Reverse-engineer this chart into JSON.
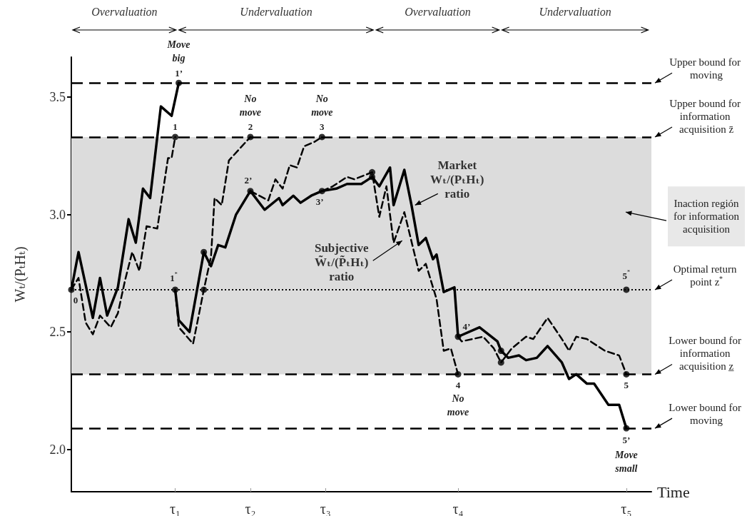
{
  "chart_data": {
    "type": "line",
    "xlabel": "Time",
    "ylabel": "Wₜ/(PₜHₜ)",
    "categories": [
      null,
      null,
      null,
      null,
      null,
      null,
      null,
      null,
      null,
      null,
      null,
      null,
      null,
      null,
      null,
      null,
      null,
      null,
      null,
      null,
      null,
      null,
      null,
      null,
      null,
      null,
      null,
      null,
      null,
      "τ₁",
      null,
      null,
      null,
      null,
      null,
      null,
      null,
      null,
      null,
      null,
      null,
      null,
      null,
      null,
      null,
      null,
      null,
      null,
      null,
      null,
      "τ₂",
      null,
      null,
      null,
      null,
      null,
      null,
      null,
      null,
      null,
      null,
      null,
      null,
      null,
      null,
      null,
      null,
      null,
      null,
      null,
      null,
      "τ₃",
      null,
      null,
      null,
      null,
      null,
      null,
      null,
      null,
      null,
      null,
      null,
      null,
      null,
      null,
      null,
      null,
      null,
      null,
      null,
      null,
      null,
      null,
      null,
      null,
      null,
      null,
      null,
      null,
      null,
      null,
      null,
      null,
      null,
      null,
      null,
      null,
      "τ₄",
      null,
      null,
      null,
      null,
      null,
      null,
      null,
      null,
      null,
      null,
      null,
      null,
      null,
      null,
      null,
      null,
      null,
      null,
      null,
      null,
      null,
      null,
      null,
      null,
      null,
      null,
      null,
      null,
      null,
      null,
      null,
      null,
      null,
      null,
      null,
      null,
      null,
      null,
      null,
      null,
      null,
      null,
      null,
      null,
      null,
      null,
      "τ₅",
      null,
      null,
      null,
      null,
      null,
      null,
      null
    ],
    "ylim": [
      1.82,
      3.67
    ],
    "yticks": [
      {
        "value": 2,
        "label": "2.0"
      },
      {
        "value": 2.5,
        "label": "2.5"
      },
      {
        "value": 3,
        "label": "3.0"
      },
      {
        "value": 3.5,
        "label": "3.5"
      }
    ],
    "series": [
      {
        "type": "line",
        "color": "#000000",
        "line_style": "solid",
        "values": [
          2.68,
          null,
          2.84,
          null,
          null,
          null,
          2.56,
          null,
          2.73,
          null,
          2.57,
          null,
          null,
          2.69,
          null,
          null,
          2.98,
          null,
          2.88,
          null,
          3.11,
          null,
          3.07,
          null,
          null,
          3.46,
          null,
          null,
          3.42,
          null,
          3.56,
          null,
          null,
          null,
          null,
          null,
          null,
          null,
          null,
          null,
          null,
          null,
          null,
          null,
          null,
          null,
          null,
          null,
          null,
          null,
          null,
          null,
          null,
          null,
          null,
          null,
          null,
          null,
          null,
          null,
          null,
          null,
          null,
          null,
          null,
          null,
          null,
          null,
          null,
          null,
          null,
          null,
          null,
          null,
          null,
          null,
          null,
          null,
          null,
          null,
          null,
          null,
          null,
          null,
          null,
          null,
          null,
          null,
          null,
          null,
          null,
          null,
          null,
          null,
          null,
          null,
          null,
          null,
          null,
          null,
          null,
          null,
          null,
          null,
          null,
          null,
          null,
          null,
          null,
          null,
          null,
          null,
          null,
          null,
          null,
          null,
          null,
          null,
          null,
          null,
          null,
          null,
          null,
          null,
          null,
          null,
          null,
          null,
          null,
          null,
          null,
          null,
          null,
          null,
          null,
          null,
          null,
          null,
          null,
          null,
          null,
          null,
          null,
          null,
          null,
          null,
          null,
          null,
          null,
          null,
          null,
          null,
          null,
          null,
          null,
          null,
          null,
          null,
          null,
          null,
          null,
          null,
          null
        ]
      },
      {
        "type": "line",
        "color": "#000000",
        "line_style": "solid",
        "values": [
          null,
          null,
          null,
          null,
          null,
          null,
          null,
          null,
          null,
          null,
          null,
          null,
          null,
          null,
          null,
          null,
          null,
          null,
          null,
          null,
          null,
          null,
          null,
          null,
          null,
          null,
          null,
          null,
          null,
          2.68,
          2.55,
          null,
          null,
          2.5,
          null,
          null,
          null,
          2.84,
          null,
          2.78,
          null,
          2.87,
          null,
          2.86,
          null,
          null,
          3.0,
          null,
          null,
          null,
          3.1,
          null,
          null,
          null,
          3.02,
          null,
          null,
          null,
          3.07,
          3.04,
          null,
          null,
          3.08,
          null,
          3.05,
          null,
          null,
          3.08,
          null,
          null,
          3.1,
          null,
          null,
          null,
          3.11,
          null,
          null,
          3.13,
          null,
          null,
          null,
          3.13,
          null,
          null,
          3.16,
          null,
          3.12,
          null,
          null,
          3.2,
          3.04,
          null,
          null,
          3.19,
          null,
          3.04,
          null,
          2.87,
          null,
          2.9,
          null,
          2.81,
          2.83,
          null,
          2.67,
          null,
          null,
          2.69,
          2.48,
          null,
          null,
          null,
          null,
          null,
          2.52,
          null,
          null,
          null,
          null,
          2.46,
          2.42,
          null,
          2.39,
          null,
          null,
          2.4,
          null,
          2.38,
          null,
          null,
          2.39,
          null,
          null,
          2.44,
          null,
          null,
          null,
          2.37,
          null,
          2.3,
          null,
          2.32,
          null,
          null,
          2.28,
          null,
          2.28,
          null,
          null,
          null,
          2.19,
          null,
          null,
          2.19,
          null,
          2.09,
          null,
          null,
          null,
          null,
          null,
          null,
          null
        ]
      },
      {
        "type": "line",
        "color": "#000000",
        "line_style": "dashed",
        "values": [
          2.68,
          null,
          2.73,
          null,
          2.54,
          null,
          2.49,
          null,
          2.57,
          null,
          null,
          2.52,
          null,
          2.58,
          null,
          2.72,
          null,
          2.84,
          null,
          2.76,
          null,
          2.95,
          null,
          null,
          2.94,
          null,
          null,
          3.24,
          3.24,
          3.33,
          null,
          null,
          null,
          null,
          null,
          null,
          null,
          null,
          null,
          null,
          null,
          null,
          null,
          null,
          null,
          null,
          null,
          null,
          null,
          null,
          null,
          null,
          null,
          null,
          null,
          null,
          null,
          null,
          null,
          null,
          null,
          null,
          null,
          null,
          null,
          null,
          null,
          null,
          null,
          null,
          null,
          null,
          null,
          null,
          null,
          null,
          null,
          null,
          null,
          null,
          null,
          null,
          null,
          null,
          null,
          null,
          null,
          null,
          null,
          null,
          null,
          null,
          null,
          null,
          null,
          null,
          null,
          null,
          null,
          null,
          null,
          null,
          null,
          null,
          null,
          null,
          null,
          null,
          null,
          null,
          null,
          null,
          null,
          null,
          null,
          null,
          null,
          null,
          null,
          null,
          null,
          null,
          null,
          null,
          null,
          null,
          null,
          null,
          null,
          null,
          null,
          null,
          null,
          null,
          null,
          null,
          null,
          null,
          null,
          null,
          null,
          null,
          null,
          null,
          null,
          null,
          null,
          null,
          null,
          null,
          null,
          null,
          null,
          null,
          null,
          null,
          null,
          null,
          null,
          null,
          null,
          null,
          null
        ]
      },
      {
        "type": "line",
        "color": "#000000",
        "line_style": "dashed",
        "values": [
          null,
          null,
          null,
          null,
          null,
          null,
          null,
          null,
          null,
          null,
          null,
          null,
          null,
          null,
          null,
          null,
          null,
          null,
          null,
          null,
          null,
          null,
          null,
          null,
          null,
          null,
          null,
          null,
          null,
          2.68,
          2.52,
          null,
          null,
          null,
          2.45,
          null,
          null,
          2.68,
          null,
          2.82,
          3.07,
          null,
          3.04,
          null,
          3.23,
          null,
          null,
          null,
          null,
          null,
          3.33,
          null,
          null,
          null,
          null,
          null,
          null,
          null,
          null,
          null,
          null,
          null,
          null,
          null,
          null,
          null,
          null,
          null,
          null,
          null,
          null,
          null,
          null,
          null,
          null,
          null,
          null,
          null,
          null,
          null,
          null,
          null,
          null,
          null,
          null,
          null,
          null,
          null,
          null,
          null,
          null,
          null,
          null,
          null,
          null,
          null,
          null,
          null,
          null,
          null,
          null,
          null,
          null,
          null,
          null,
          null,
          null,
          null,
          null,
          null,
          null,
          null,
          null,
          null,
          null,
          null,
          null,
          null,
          null,
          null,
          null,
          null,
          null,
          null,
          null,
          null,
          null,
          null,
          null,
          null,
          null,
          null,
          null,
          null,
          null,
          null,
          null,
          null,
          null,
          null,
          null,
          null,
          null,
          null,
          null,
          null,
          null,
          null,
          null,
          null,
          null,
          null,
          null,
          null,
          null,
          null,
          null,
          null,
          null,
          null,
          null,
          null,
          null
        ]
      },
      {
        "type": "line",
        "color": "#000000",
        "line_style": "dashed",
        "values": [
          null,
          null,
          null,
          null,
          null,
          null,
          null,
          null,
          null,
          null,
          null,
          null,
          null,
          null,
          null,
          null,
          null,
          null,
          null,
          null,
          null,
          null,
          null,
          null,
          null,
          null,
          null,
          null,
          null,
          null,
          null,
          null,
          null,
          null,
          null,
          null,
          null,
          null,
          null,
          null,
          null,
          null,
          null,
          null,
          null,
          null,
          null,
          null,
          null,
          null,
          3.1,
          null,
          null,
          null,
          null,
          3.06,
          null,
          3.15,
          null,
          3.11,
          null,
          3.21,
          null,
          3.2,
          null,
          3.29,
          null,
          null,
          3.31,
          null,
          3.33,
          null,
          null,
          null,
          null,
          null,
          null,
          null,
          null,
          null,
          null,
          null,
          null,
          null,
          null,
          null,
          null,
          null,
          null,
          null,
          null,
          null,
          null,
          null,
          null,
          null,
          null,
          null,
          null,
          null,
          null,
          null,
          null,
          null,
          null,
          null,
          null,
          null,
          null,
          null,
          null,
          null,
          null,
          null,
          null,
          null,
          null,
          null,
          null,
          null,
          null,
          null,
          null,
          null,
          null,
          null,
          null,
          null,
          null,
          null,
          null,
          null,
          null,
          null,
          null,
          null,
          null,
          null,
          null,
          null,
          null,
          null,
          null,
          null,
          null,
          null,
          null,
          null,
          null,
          null,
          null,
          null,
          null,
          null,
          null,
          null,
          null,
          null,
          null,
          null,
          null,
          null,
          null
        ]
      },
      {
        "type": "line",
        "color": "#000000",
        "line_style": "dashed",
        "values": [
          null,
          null,
          null,
          null,
          null,
          null,
          null,
          null,
          null,
          null,
          null,
          null,
          null,
          null,
          null,
          null,
          null,
          null,
          null,
          null,
          null,
          null,
          null,
          null,
          null,
          null,
          null,
          null,
          null,
          null,
          null,
          null,
          null,
          null,
          null,
          null,
          null,
          null,
          null,
          null,
          null,
          null,
          null,
          null,
          null,
          null,
          null,
          null,
          null,
          null,
          null,
          null,
          null,
          null,
          null,
          null,
          null,
          null,
          null,
          null,
          null,
          null,
          null,
          null,
          null,
          null,
          null,
          null,
          null,
          null,
          3.1,
          null,
          null,
          3.12,
          null,
          null,
          null,
          3.16,
          null,
          3.15,
          null,
          null,
          null,
          null,
          3.18,
          null,
          2.99,
          null,
          3.12,
          null,
          2.88,
          null,
          null,
          3.01,
          null,
          null,
          null,
          2.76,
          null,
          2.79,
          null,
          null,
          2.64,
          null,
          2.42,
          null,
          2.43,
          null,
          2.32,
          null,
          null,
          null,
          null,
          null,
          null,
          null,
          null,
          null,
          null,
          null,
          null,
          null,
          null,
          null,
          null,
          null,
          null,
          null,
          null,
          null,
          null,
          null,
          null,
          null,
          null,
          null,
          null,
          null,
          null,
          null,
          null,
          null,
          null,
          null,
          null,
          null,
          null,
          null,
          null,
          null,
          null,
          null,
          null,
          null,
          null,
          null,
          null,
          null,
          null,
          null,
          null,
          null,
          null
        ]
      },
      {
        "type": "line",
        "color": "#000000",
        "line_style": "dashed",
        "values": [
          null,
          null,
          null,
          null,
          null,
          null,
          null,
          null,
          null,
          null,
          null,
          null,
          null,
          null,
          null,
          null,
          null,
          null,
          null,
          null,
          null,
          null,
          null,
          null,
          null,
          null,
          null,
          null,
          null,
          null,
          null,
          null,
          null,
          null,
          null,
          null,
          null,
          null,
          null,
          null,
          null,
          null,
          null,
          null,
          null,
          null,
          null,
          null,
          null,
          null,
          null,
          null,
          null,
          null,
          null,
          null,
          null,
          null,
          null,
          null,
          null,
          null,
          null,
          null,
          null,
          null,
          null,
          null,
          null,
          null,
          null,
          null,
          null,
          null,
          null,
          null,
          null,
          null,
          null,
          null,
          null,
          null,
          null,
          null,
          null,
          null,
          null,
          null,
          null,
          null,
          null,
          null,
          null,
          null,
          null,
          null,
          null,
          null,
          null,
          null,
          null,
          null,
          null,
          null,
          null,
          null,
          null,
          null,
          2.48,
          2.46,
          null,
          null,
          null,
          null,
          null,
          2.48,
          null,
          null,
          2.43,
          null,
          2.37,
          null,
          null,
          2.43,
          null,
          null,
          null,
          2.48,
          null,
          2.47,
          null,
          null,
          null,
          2.56,
          null,
          null,
          null,
          2.47,
          null,
          2.42,
          null,
          2.48,
          null,
          null,
          2.47,
          null,
          null,
          null,
          null,
          2.42,
          null,
          null,
          null,
          2.4,
          null,
          2.32,
          null,
          null,
          null,
          null,
          null,
          null,
          null
        ]
      },
      {
        "type": "scatter",
        "color": "#000000",
        "marker": "circle",
        "values": [
          2.68,
          null,
          null,
          null,
          null,
          null,
          null,
          null,
          null,
          null,
          null,
          null,
          null,
          null,
          null,
          null,
          null,
          null,
          null,
          null,
          null,
          null,
          null,
          null,
          null,
          null,
          null,
          null,
          null,
          2.68,
          3.56,
          null,
          null,
          null,
          null,
          null,
          null,
          2.84,
          null,
          null,
          null,
          null,
          null,
          null,
          null,
          null,
          null,
          null,
          null,
          null,
          3.1,
          null,
          null,
          null,
          null,
          null,
          null,
          null,
          null,
          null,
          null,
          null,
          null,
          null,
          null,
          null,
          null,
          null,
          null,
          null,
          3.1,
          null,
          null,
          null,
          null,
          null,
          null,
          null,
          null,
          null,
          null,
          null,
          null,
          null,
          3.16,
          null,
          null,
          null,
          null,
          null,
          null,
          null,
          null,
          null,
          null,
          null,
          null,
          null,
          null,
          null,
          null,
          null,
          null,
          null,
          null,
          null,
          null,
          null,
          2.48,
          null,
          null,
          null,
          null,
          null,
          null,
          null,
          null,
          null,
          null,
          null,
          2.42,
          null,
          null,
          null,
          null,
          null,
          null,
          null,
          null,
          null,
          null,
          null,
          null,
          null,
          null,
          null,
          null,
          null,
          null,
          null,
          null,
          null,
          null,
          null,
          null,
          null,
          null,
          null,
          null,
          null,
          null,
          null,
          null,
          null,
          null,
          2.09,
          null,
          null,
          null,
          null,
          null,
          null,
          null
        ]
      },
      {
        "type": "scatter",
        "color": "#000000",
        "marker": "circle",
        "values": [
          null,
          null,
          null,
          null,
          null,
          null,
          null,
          null,
          null,
          null,
          null,
          null,
          null,
          null,
          null,
          null,
          null,
          null,
          null,
          null,
          null,
          null,
          null,
          null,
          null,
          null,
          null,
          null,
          null,
          3.33,
          null,
          null,
          null,
          null,
          null,
          null,
          null,
          2.68,
          null,
          null,
          null,
          null,
          null,
          null,
          null,
          null,
          null,
          null,
          null,
          null,
          3.33,
          null,
          null,
          null,
          null,
          null,
          null,
          null,
          null,
          null,
          null,
          null,
          null,
          null,
          null,
          null,
          null,
          null,
          null,
          null,
          3.33,
          null,
          null,
          null,
          null,
          null,
          null,
          null,
          null,
          null,
          null,
          null,
          null,
          null,
          3.18,
          null,
          null,
          null,
          null,
          null,
          null,
          null,
          null,
          null,
          null,
          null,
          null,
          null,
          null,
          null,
          null,
          null,
          null,
          null,
          null,
          null,
          null,
          null,
          2.32,
          null,
          null,
          null,
          null,
          null,
          null,
          null,
          null,
          null,
          null,
          null,
          2.37,
          null,
          null,
          null,
          null,
          null,
          null,
          null,
          null,
          null,
          null,
          null,
          null,
          null,
          null,
          null,
          null,
          null,
          null,
          null,
          null,
          null,
          null,
          null,
          null,
          null,
          null,
          null,
          null,
          null,
          null,
          null,
          null,
          null,
          null,
          2.32,
          null,
          null,
          null,
          null,
          null,
          null,
          null
        ]
      },
      {
        "type": "scatter",
        "color": "#000000",
        "marker": "circle",
        "values": [
          null,
          null,
          null,
          null,
          null,
          null,
          null,
          null,
          null,
          null,
          null,
          null,
          null,
          null,
          null,
          null,
          null,
          null,
          null,
          null,
          null,
          null,
          null,
          null,
          null,
          null,
          null,
          null,
          null,
          null,
          null,
          null,
          null,
          null,
          null,
          null,
          null,
          null,
          null,
          null,
          null,
          null,
          null,
          null,
          null,
          null,
          null,
          null,
          null,
          null,
          null,
          null,
          null,
          null,
          null,
          null,
          null,
          null,
          null,
          null,
          null,
          null,
          null,
          null,
          null,
          null,
          null,
          null,
          null,
          null,
          null,
          null,
          null,
          null,
          null,
          null,
          null,
          null,
          null,
          null,
          null,
          null,
          null,
          null,
          null,
          null,
          null,
          null,
          null,
          null,
          null,
          null,
          null,
          null,
          null,
          null,
          null,
          null,
          null,
          null,
          null,
          null,
          null,
          null,
          null,
          null,
          null,
          null,
          null,
          null,
          null,
          null,
          null,
          null,
          null,
          null,
          null,
          null,
          null,
          null,
          null,
          null,
          null,
          null,
          null,
          null,
          null,
          null,
          null,
          null,
          null,
          null,
          null,
          null,
          null,
          null,
          null,
          null,
          null,
          null,
          null,
          null,
          null,
          null,
          null,
          null,
          null,
          null,
          null,
          null,
          null,
          null,
          null,
          null,
          null,
          2.68,
          null,
          null,
          null,
          null,
          null,
          null,
          null
        ]
      }
    ],
    "ref_lines": [
      {
        "axis": "y",
        "value": 3.56,
        "label": "Upper bound for moving",
        "line_style": "dashed",
        "color": "#000000"
      },
      {
        "axis": "y",
        "value": 3.33,
        "label": "Upper bound for information acquisition z̄",
        "line_style": "dashed",
        "color": "#000000"
      },
      {
        "axis": "y",
        "value": 2.68,
        "label": "Optimal return point z$^{*}$",
        "line_style": "dotted",
        "color": "#000000"
      },
      {
        "axis": "y",
        "value": 2.32,
        "label": "Lower bound for information acquisition z̲",
        "line_style": "dashed",
        "color": "#000000"
      },
      {
        "axis": "y",
        "value": 2.09,
        "label": "Lower bound for moving",
        "line_style": "dashed",
        "color": "#000000"
      }
    ],
    "bands": [
      {
        "axis": "y",
        "from": 2.32,
        "to": 3.33,
        "label": "Inaction región for information acquisition",
        "color": "#dcdcdc"
      }
    ],
    "annotations": [
      "Overvaluation",
      "Undervaluation",
      "Overvaluation",
      "Undervaluation",
      "0",
      "1’",
      "Move big",
      "1",
      "1$^{*}$",
      "2",
      "No move",
      "2’",
      "3",
      "No move",
      "3’",
      "4",
      "No move",
      "4’",
      "5",
      "5’",
      "Move small",
      "5$^{*}$",
      "Market Wₜ/(PₜHₜ) ratio",
      "Subjective W̃ₜ/(P̃ₜHₜ) ratio"
    ]
  }
}
